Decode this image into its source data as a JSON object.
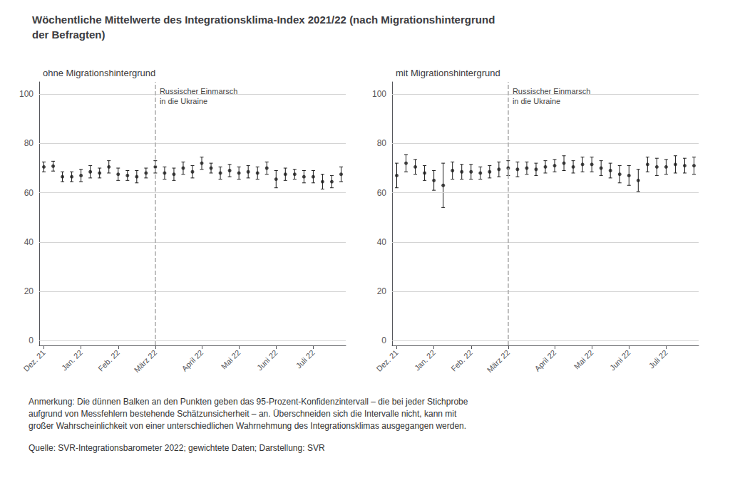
{
  "title": "Wöchentliche Mittelwerte des Integrationsklima-Index 2021/22 (nach Migrationshintergrund\nder Befragten)",
  "annotations": [
    {
      "text": "Anmerkung: Die dünnen Balken an den Punkten geben das 95-Prozent-Konfidenzintervall – die bei jeder Stichprobe\naufgrund von Messfehlern bestehende Schätzunsicherheit – an. Überschneiden sich die Intervalle nicht, kann mit\ngroßer Wahrscheinlichkeit von einer unterschiedlichen Wahrnehmung des Integrationsklimas ausgegangen werden."
    },
    {
      "text": "Quelle: SVR-Integrationsbarometer 2022; gewichtete Daten; Darstellung: SVR"
    }
  ],
  "chart_data": [
    {
      "type": "scatter",
      "title": "ohne Migrationshintergrund",
      "categories": [
        "Dez. 21",
        null,
        null,
        null,
        "Jan. 22",
        null,
        null,
        null,
        "Feb. 22",
        null,
        null,
        null,
        "März 22",
        null,
        null,
        null,
        null,
        "April 22",
        null,
        null,
        null,
        "Mai 22",
        null,
        null,
        null,
        "Juni 22",
        null,
        null,
        null,
        "Juli 22",
        null,
        null,
        null
      ],
      "values": [
        70.5,
        70.8,
        66.5,
        66.5,
        67.0,
        68.5,
        68.0,
        70.5,
        67.5,
        67.0,
        66.5,
        68.0,
        70.5,
        68.0,
        67.5,
        70.0,
        68.5,
        72.0,
        70.0,
        68.0,
        69.0,
        68.0,
        68.5,
        68.0,
        70.0,
        65.5,
        67.5,
        67.5,
        66.5,
        66.5,
        64.5,
        64.5,
        67.5
      ],
      "error": [
        2.0,
        2.0,
        2.0,
        2.0,
        2.5,
        2.5,
        2.0,
        2.5,
        2.5,
        2.0,
        2.5,
        2.0,
        2.5,
        2.5,
        2.5,
        2.5,
        2.5,
        2.5,
        2.0,
        2.5,
        2.5,
        2.5,
        2.5,
        2.5,
        2.5,
        3.5,
        2.5,
        2.0,
        2.5,
        2.5,
        3.0,
        2.5,
        3.0
      ],
      "color": "#1a1a1a",
      "ylim": [
        -2,
        105
      ],
      "yticks": [
        0,
        20,
        40,
        60,
        80,
        100
      ],
      "grid": true,
      "annotations": [
        {
          "x": 12,
          "text": "Russischer Einmarsch\nin die Ukraine"
        }
      ]
    },
    {
      "type": "scatter",
      "title": "mit Migrationshintergrund",
      "categories": [
        "Dez. 21",
        null,
        null,
        null,
        "Jan. 22",
        null,
        null,
        null,
        "Feb. 22",
        null,
        null,
        null,
        "März 22",
        null,
        null,
        null,
        null,
        "April 22",
        null,
        null,
        null,
        "Mai 22",
        null,
        null,
        null,
        "Juni 22",
        null,
        null,
        null,
        "Juli 22",
        null,
        null,
        null
      ],
      "values": [
        67.0,
        72.0,
        70.5,
        68.0,
        65.0,
        63.0,
        69.0,
        68.5,
        68.5,
        68.0,
        68.5,
        69.5,
        70.0,
        69.5,
        70.0,
        69.5,
        70.5,
        71.0,
        72.0,
        70.5,
        71.5,
        71.5,
        70.0,
        69.0,
        67.5,
        67.0,
        65.0,
        71.5,
        70.5,
        70.5,
        71.5,
        71.0,
        71.0
      ],
      "error": [
        5.0,
        3.5,
        3.0,
        3.0,
        4.0,
        9.0,
        3.5,
        3.0,
        3.0,
        2.5,
        2.5,
        3.0,
        3.0,
        3.0,
        2.5,
        2.5,
        2.5,
        2.5,
        3.0,
        2.5,
        3.0,
        3.0,
        3.0,
        3.0,
        3.5,
        4.0,
        4.5,
        3.0,
        3.5,
        3.0,
        3.5,
        3.0,
        3.5
      ],
      "color": "#1a1a1a",
      "ylim": [
        -2,
        105
      ],
      "yticks": [
        0,
        20,
        40,
        60,
        80,
        100
      ],
      "grid": true,
      "annotations": [
        {
          "x": 12,
          "text": "Russischer Einmarsch\nin die Ukraine"
        }
      ]
    }
  ]
}
